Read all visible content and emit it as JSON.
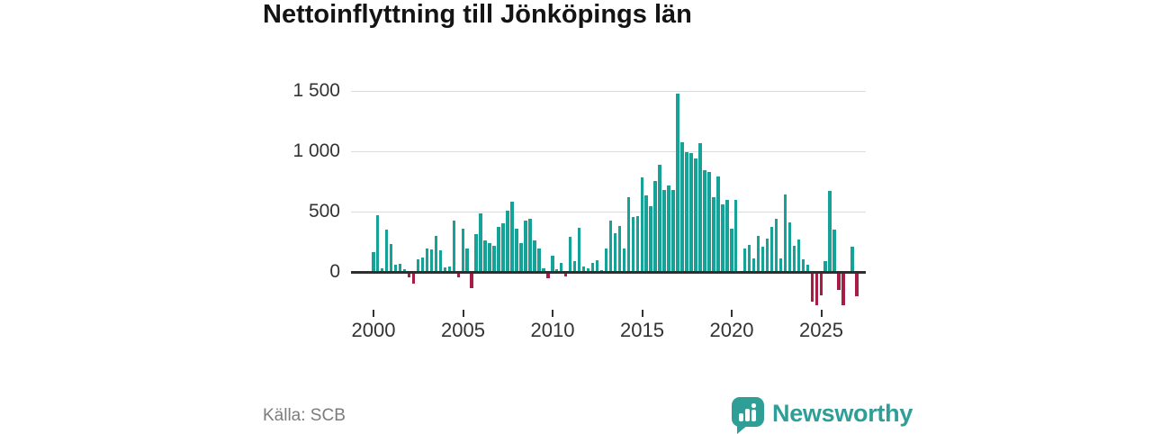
{
  "title": "Nettoinflyttning till Jönköpings län",
  "source": "Källa: SCB",
  "logo": {
    "text": "Newsworthy"
  },
  "colors": {
    "positive": "#16a296",
    "negative": "#a61e45",
    "axis": "#2f2f2f",
    "grid": "#dcdcdc",
    "brand": "#2e9e96",
    "text": "#333333"
  },
  "chart_data": {
    "type": "bar",
    "title": "Nettoinflyttning till Jönköpings län",
    "x_unit": "quarter",
    "start": "2000-Q1",
    "end": "2026-Q1",
    "x_tick_labels": [
      "2000",
      "2005",
      "2010",
      "2015",
      "2020",
      "2025"
    ],
    "y_tick_labels": [
      "0",
      "500",
      "1 000",
      "1 500"
    ],
    "y_ticks": [
      0,
      500,
      1000,
      1500
    ],
    "ylim": [
      -350,
      1580
    ],
    "grid": true,
    "legend": false,
    "values": [
      157,
      465,
      20,
      343,
      226,
      52,
      60,
      15,
      -30,
      -85,
      95,
      110,
      190,
      177,
      289,
      169,
      27,
      40,
      418,
      -27,
      351,
      189,
      -122,
      306,
      480,
      256,
      231,
      207,
      363,
      396,
      500,
      575,
      351,
      229,
      418,
      435,
      251,
      189,
      25,
      -36,
      127,
      15,
      70,
      -22,
      280,
      85,
      358,
      35,
      20,
      65,
      90,
      10,
      189,
      418,
      313,
      371,
      189,
      612,
      450,
      458,
      779,
      624,
      537,
      749,
      878,
      674,
      711,
      674,
      1470,
      1065,
      985,
      978,
      930,
      1060,
      836,
      823,
      612,
      786,
      550,
      587,
      351,
      587,
      0,
      190,
      214,
      102,
      293,
      201,
      269,
      363,
      430,
      102,
      632,
      400,
      206,
      259,
      95,
      52,
      -229,
      -259,
      -179,
      85,
      662,
      343,
      -134,
      -259,
      0,
      201,
      -184
    ]
  }
}
